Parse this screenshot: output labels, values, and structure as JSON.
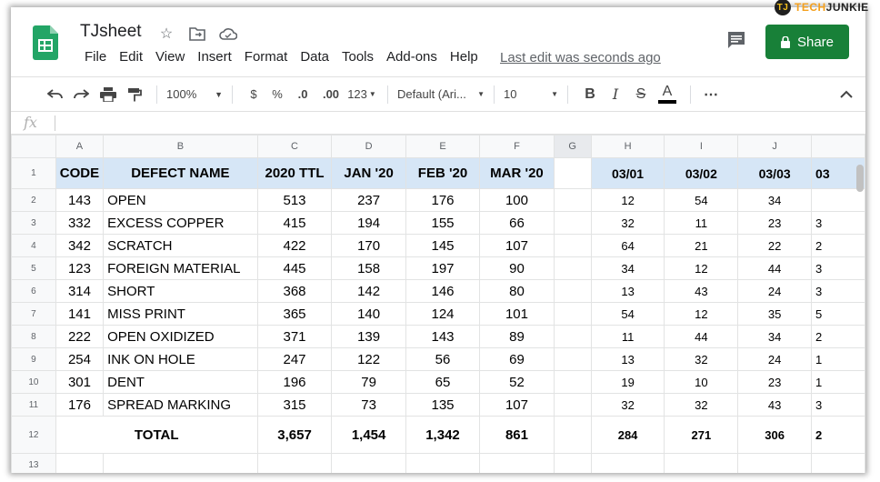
{
  "brand": {
    "mark": "TJ",
    "part1": "TECH",
    "part2": "JUNKIE"
  },
  "doc": {
    "title": "TJsheet",
    "last_edit": "Last edit was seconds ago"
  },
  "menu": [
    "File",
    "Edit",
    "View",
    "Insert",
    "Format",
    "Data",
    "Tools",
    "Add-ons",
    "Help"
  ],
  "share": {
    "label": "Share",
    "color": "#188038"
  },
  "toolbar": {
    "zoom": "100%",
    "currency": "$",
    "percent": "%",
    "dec_less": ".0",
    "dec_more": ".00",
    "more_formats": "123",
    "font": "Default (Ari...",
    "font_size": "10"
  },
  "formula_bar": {
    "fx_label": "fx"
  },
  "columns": [
    "A",
    "B",
    "C",
    "D",
    "E",
    "F",
    "G",
    "H",
    "I",
    "J",
    ""
  ],
  "header_row": {
    "row_num": "1",
    "cells": [
      "CODE",
      "DEFECT NAME",
      "2020 TTL",
      "JAN '20",
      "FEB '20",
      "MAR '20",
      "",
      "03/01",
      "03/02",
      "03/03",
      "03"
    ]
  },
  "rows": [
    {
      "n": "2",
      "cells": [
        "143",
        "OPEN",
        "513",
        "237",
        "176",
        "100",
        "",
        "12",
        "54",
        "34",
        ""
      ]
    },
    {
      "n": "3",
      "cells": [
        "332",
        "EXCESS COPPER",
        "415",
        "194",
        "155",
        "66",
        "",
        "32",
        "11",
        "23",
        "3"
      ]
    },
    {
      "n": "4",
      "cells": [
        "342",
        "SCRATCH",
        "422",
        "170",
        "145",
        "107",
        "",
        "64",
        "21",
        "22",
        "2"
      ]
    },
    {
      "n": "5",
      "cells": [
        "123",
        "FOREIGN MATERIAL",
        "445",
        "158",
        "197",
        "90",
        "",
        "34",
        "12",
        "44",
        "3"
      ]
    },
    {
      "n": "6",
      "cells": [
        "314",
        "SHORT",
        "368",
        "142",
        "146",
        "80",
        "",
        "13",
        "43",
        "24",
        "3"
      ]
    },
    {
      "n": "7",
      "cells": [
        "141",
        "MISS PRINT",
        "365",
        "140",
        "124",
        "101",
        "",
        "54",
        "12",
        "35",
        "5"
      ]
    },
    {
      "n": "8",
      "cells": [
        "222",
        "OPEN OXIDIZED",
        "371",
        "139",
        "143",
        "89",
        "",
        "11",
        "44",
        "34",
        "2"
      ]
    },
    {
      "n": "9",
      "cells": [
        "254",
        "INK ON HOLE",
        "247",
        "122",
        "56",
        "69",
        "",
        "13",
        "32",
        "24",
        "1"
      ]
    },
    {
      "n": "10",
      "cells": [
        "301",
        "DENT",
        "196",
        "79",
        "65",
        "52",
        "",
        "19",
        "10",
        "23",
        "1"
      ]
    },
    {
      "n": "11",
      "cells": [
        "176",
        "SPREAD MARKING",
        "315",
        "73",
        "135",
        "107",
        "",
        "32",
        "32",
        "43",
        "3"
      ]
    }
  ],
  "total_row": {
    "n": "12",
    "label": "TOTAL",
    "cells": [
      "3,657",
      "1,454",
      "1,342",
      "861",
      "",
      "284",
      "271",
      "306",
      "2"
    ]
  },
  "empty_row": {
    "n": "13"
  }
}
